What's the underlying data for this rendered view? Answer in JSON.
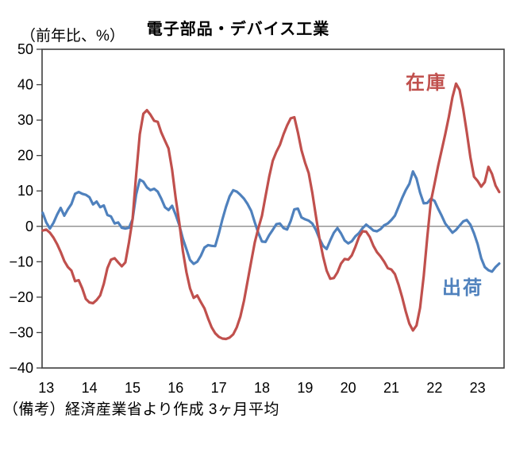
{
  "chart_data": {
    "type": "line",
    "title": "電子部品・デバイス工業",
    "unit_label": "（前年比、%）",
    "footer": "（備考）経済産業省より作成 3ヶ月平均",
    "x_tick_labels": [
      "13",
      "14",
      "15",
      "16",
      "17",
      "18",
      "19",
      "20",
      "21",
      "22",
      "23"
    ],
    "y_tick_values": [
      50,
      40,
      30,
      20,
      10,
      0,
      -10,
      -20,
      -30,
      -40
    ],
    "y_tick_labels": [
      "50",
      "40",
      "30",
      "20",
      "10",
      "0",
      "−10",
      "−20",
      "−30",
      "−40"
    ],
    "ylim": [
      -40,
      50
    ],
    "grid": "zero-line-only",
    "legend_position": "inline-annotations",
    "axis_color": "#3f3f3f",
    "zero_line_color": "#808080",
    "frame_color": "#3f3f3f",
    "series": [
      {
        "name": "在庫",
        "color": "#C0504D",
        "values": [
          -1.2,
          -0.9,
          -1.8,
          -3.2,
          -5.0,
          -7.2,
          -9.8,
          -11.5,
          -12.5,
          -15.5,
          -15.2,
          -17.5,
          -20.5,
          -21.5,
          -21.7,
          -20.8,
          -19.5,
          -16.2,
          -11.8,
          -9.4,
          -9.0,
          -10.2,
          -11.3,
          -10.2,
          -4.5,
          2.0,
          14.5,
          26.0,
          31.8,
          32.8,
          31.5,
          29.8,
          29.5,
          26.5,
          24.2,
          22.0,
          16.0,
          8.0,
          1.0,
          -7.0,
          -13.0,
          -17.5,
          -20.2,
          -19.5,
          -21.4,
          -23.2,
          -26.0,
          -28.5,
          -30.2,
          -31.2,
          -31.7,
          -31.8,
          -31.4,
          -30.5,
          -28.5,
          -25.5,
          -21.0,
          -15.5,
          -10.0,
          -4.5,
          -0.5,
          3.0,
          8.5,
          14.0,
          18.5,
          21.0,
          23.0,
          26.0,
          28.5,
          30.5,
          30.8,
          26.5,
          21.5,
          18.0,
          15.0,
          9.5,
          3.0,
          -3.5,
          -8.5,
          -12.5,
          -14.8,
          -14.6,
          -13.0,
          -10.5,
          -9.2,
          -9.4,
          -8.2,
          -5.8,
          -3.0,
          -1.4,
          -1.5,
          -3.0,
          -5.5,
          -7.3,
          -8.5,
          -10.0,
          -11.8,
          -12.2,
          -13.5,
          -16.5,
          -20.0,
          -24.0,
          -27.5,
          -29.4,
          -28.0,
          -23.0,
          -14.0,
          -3.0,
          7.0,
          12.0,
          17.0,
          21.5,
          26.0,
          31.0,
          36.5,
          40.3,
          38.5,
          33.0,
          26.5,
          19.5,
          14.0,
          12.8,
          11.2,
          12.5,
          16.8,
          14.8,
          11.5,
          9.7
        ]
      },
      {
        "name": "出荷",
        "color": "#4F81BD",
        "values": [
          3.8,
          1.1,
          -0.6,
          1.0,
          3.3,
          5.2,
          3.0,
          4.8,
          6.3,
          9.2,
          9.7,
          9.2,
          8.9,
          8.2,
          6.2,
          7.0,
          5.4,
          5.9,
          3.2,
          2.8,
          0.8,
          1.1,
          -0.4,
          -0.6,
          -0.4,
          2.0,
          9.0,
          13.2,
          12.6,
          11.0,
          10.2,
          10.6,
          9.8,
          7.8,
          5.4,
          4.6,
          5.8,
          3.3,
          0.3,
          -3.5,
          -6.5,
          -9.5,
          -10.6,
          -10.0,
          -8.3,
          -6.0,
          -5.3,
          -5.5,
          -5.6,
          -2.0,
          2.0,
          5.5,
          8.5,
          10.2,
          9.8,
          8.9,
          7.8,
          6.3,
          4.4,
          1.1,
          -1.9,
          -4.3,
          -4.4,
          -2.5,
          -1.0,
          0.6,
          0.8,
          -0.5,
          -0.9,
          1.5,
          4.8,
          5.0,
          2.5,
          2.0,
          1.6,
          0.8,
          -1.0,
          -3.5,
          -5.5,
          -6.4,
          -4.0,
          -1.8,
          -0.5,
          -2.0,
          -4.0,
          -4.8,
          -4.2,
          -2.8,
          -1.9,
          -0.5,
          0.5,
          -0.3,
          -1.2,
          -1.4,
          -0.8,
          0.3,
          0.8,
          1.8,
          3.0,
          5.5,
          8.0,
          10.2,
          12.0,
          15.5,
          13.5,
          9.5,
          6.5,
          6.6,
          7.8,
          7.2,
          5.0,
          3.0,
          0.8,
          -0.5,
          -1.8,
          -1.0,
          0.2,
          1.4,
          1.8,
          0.5,
          -2.0,
          -5.0,
          -9.0,
          -11.5,
          -12.4,
          -12.8,
          -11.5,
          -10.5
        ]
      }
    ]
  }
}
